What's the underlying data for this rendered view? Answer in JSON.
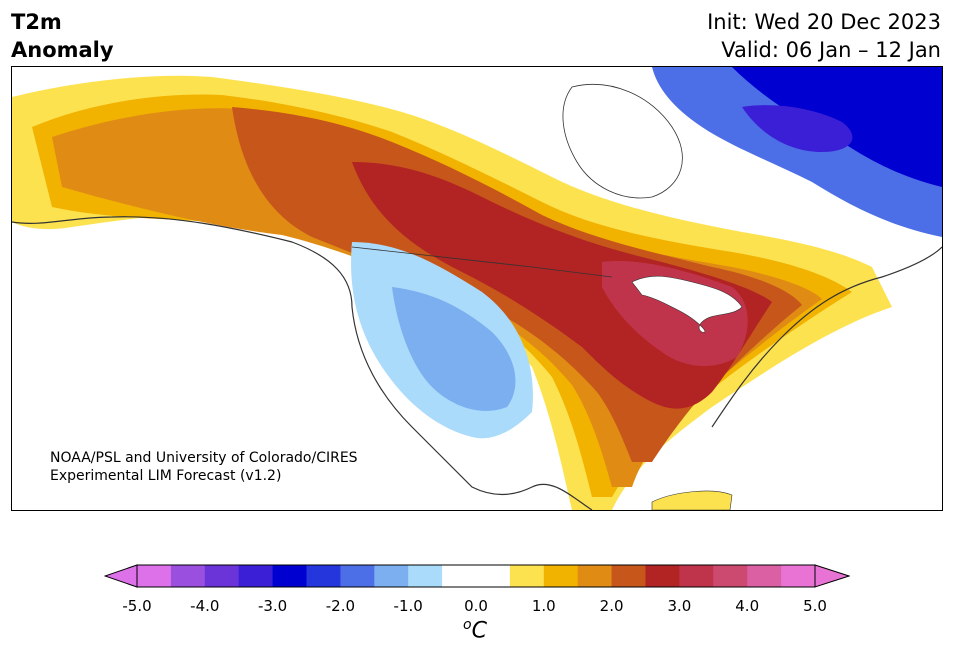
{
  "title": {
    "left_line1": "T2m",
    "left_line2": "Anomaly",
    "right_line1": "Init: Wed 20 Dec 2023",
    "right_line2": "Valid: 06 Jan – 12 Jan"
  },
  "credit": {
    "line1": "NOAA/PSL and University of Colorado/CIRES",
    "line2": "Experimental LIM Forecast (v1.2)"
  },
  "colorbar": {
    "unit_base": "C",
    "unit_super": "o",
    "ticks": [
      "-5.0",
      "-4.0",
      "-3.0",
      "-2.0",
      "-1.0",
      "0.0",
      "1.0",
      "2.0",
      "3.0",
      "4.0",
      "5.0"
    ],
    "colors": [
      "#dd71e9",
      "#9b4fdf",
      "#6a34d9",
      "#3a1fd6",
      "#0000d1",
      "#2436dc",
      "#4c6ee6",
      "#7bafef",
      "#abdbfb",
      "#ffffff",
      "#ffffff",
      "#fde250",
      "#f2b300",
      "#e08b13",
      "#c6561a",
      "#b22323",
      "#c0344b",
      "#cc4a6f",
      "#da5fa3",
      "#e873d4"
    ],
    "under_color": "#dd71e9",
    "over_color": "#e873d4"
  },
  "map": {
    "projection": "Lambert conformal",
    "region": "North America",
    "anomaly_zones": [
      {
        "name": "southeast-us",
        "anomaly": "+3.0 to +4.0"
      },
      {
        "name": "great-lakes",
        "anomaly": "+3.5 to +4.0"
      },
      {
        "name": "western-us",
        "anomaly": "-1.0 to -2.0"
      },
      {
        "name": "northern-quebec",
        "anomaly": "-2.0 to -4.0"
      },
      {
        "name": "alaska-yukon",
        "anomaly": "+1.0 to +2.5"
      }
    ]
  }
}
